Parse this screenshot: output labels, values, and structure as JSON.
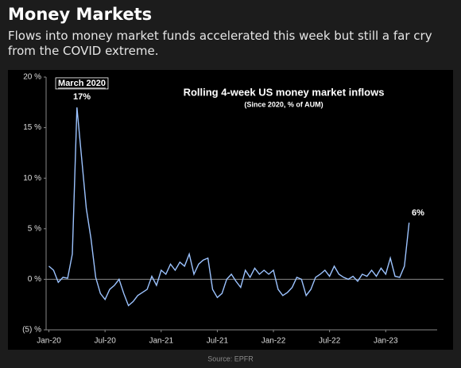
{
  "header": {
    "title": "Money Markets",
    "subtitle": "Flows into money market funds accelerated this week but still a far cry from the COVID extreme."
  },
  "chart_data": {
    "type": "line",
    "title": "Rolling 4-week US money market inflows",
    "subtitle": "(Since 2020, % of AUM)",
    "annotations": [
      "March 2020",
      "17%",
      "6%"
    ],
    "x": [
      0,
      0.5,
      1,
      1.5,
      2,
      2.5,
      3,
      3.5,
      4,
      4.5,
      5,
      5.5,
      6,
      6.5,
      7,
      7.5,
      8,
      8.5,
      9,
      9.5,
      10,
      10.5,
      11,
      11.5,
      12,
      12.5,
      13,
      13.5,
      14,
      14.5,
      15,
      15.5,
      16,
      16.5,
      17,
      17.5,
      18,
      18.5,
      19,
      19.5,
      20,
      20.5,
      21,
      21.5,
      22,
      22.5,
      23,
      23.5,
      24,
      24.5,
      25,
      25.5,
      26,
      26.5,
      27,
      27.5,
      28,
      28.5,
      29,
      29.5,
      30,
      30.5,
      31,
      31.5,
      32,
      32.5,
      33,
      33.5,
      34,
      34.5,
      35,
      35.5,
      36,
      36.5,
      37,
      37.5,
      38,
      38.5
    ],
    "series": [
      {
        "color": "#9cc3ff",
        "values": [
          1.3,
          0.9,
          -0.3,
          0.2,
          0.1,
          2.5,
          17,
          12,
          7,
          4,
          0.2,
          -1.4,
          -2,
          -1,
          -0.6,
          0,
          -1.4,
          -2.6,
          -2.2,
          -1.6,
          -1.3,
          -1,
          0.3,
          -0.6,
          0.9,
          0.5,
          1.5,
          0.9,
          1.7,
          1.3,
          2.5,
          0.5,
          1.5,
          1.9,
          2.1,
          -1,
          -1.8,
          -1.4,
          0,
          0.5,
          -0.2,
          -0.8,
          0.9,
          0.2,
          1.1,
          0.5,
          0.9,
          0.5,
          0.9,
          -1,
          -1.6,
          -1.3,
          -0.8,
          0.2,
          0,
          -1.6,
          -1,
          0.2,
          0.5,
          0.9,
          0.3,
          1.3,
          0.5,
          0.2,
          0,
          0.3,
          -0.2,
          0.5,
          0.3,
          0.9,
          0.3,
          1.1,
          0.5,
          2.1,
          0.3,
          0.2,
          1.3,
          5.6
        ]
      }
    ],
    "xlim": [
      -0.3,
      41.5
    ],
    "xticks": [
      {
        "value": 0,
        "label": "Jan-20"
      },
      {
        "value": 6,
        "label": "Jul-20"
      },
      {
        "value": 12,
        "label": "Jan-21"
      },
      {
        "value": 18,
        "label": "Jul-21"
      },
      {
        "value": 24,
        "label": "Jan-22"
      },
      {
        "value": 30,
        "label": "Jul-22"
      },
      {
        "value": 36,
        "label": "Jan-23"
      }
    ],
    "ylim": [
      -5,
      20
    ],
    "yticks": [
      {
        "value": -5,
        "label": "(5) %"
      },
      {
        "value": 0,
        "label": "0 %"
      },
      {
        "value": 5,
        "label": "5 %"
      },
      {
        "value": 10,
        "label": "10 %"
      },
      {
        "value": 15,
        "label": "15 %"
      },
      {
        "value": 20,
        "label": "20 %"
      }
    ],
    "source": "Source: EPFR"
  }
}
